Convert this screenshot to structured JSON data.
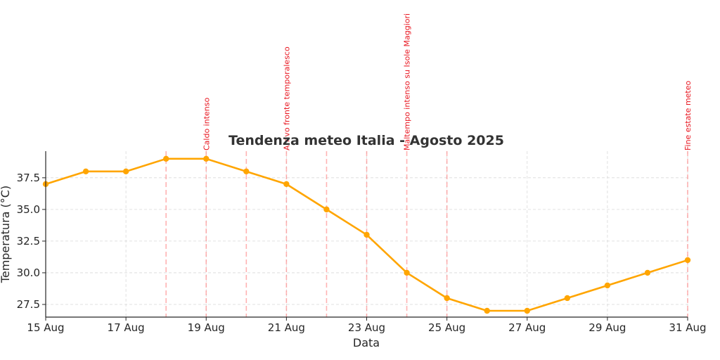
{
  "chart_data": {
    "type": "line",
    "title": "Tendenza meteo Italia - Agosto 2025",
    "xlabel": "Data",
    "ylabel": "Temperatura (°C)",
    "x": [
      "15 Aug",
      "16 Aug",
      "17 Aug",
      "18 Aug",
      "19 Aug",
      "20 Aug",
      "21 Aug",
      "22 Aug",
      "23 Aug",
      "24 Aug",
      "25 Aug",
      "26 Aug",
      "27 Aug",
      "28 Aug",
      "29 Aug",
      "30 Aug",
      "31 Aug"
    ],
    "xticks": [
      "15 Aug",
      "17 Aug",
      "19 Aug",
      "21 Aug",
      "23 Aug",
      "25 Aug",
      "27 Aug",
      "29 Aug",
      "31 Aug"
    ],
    "yticks": [
      "27.5",
      "30.0",
      "32.5",
      "35.0",
      "37.5"
    ],
    "ylim": [
      26.5,
      39.6
    ],
    "series": [
      {
        "values": [
          37,
          38,
          38,
          39,
          39,
          38,
          37,
          35,
          33,
          30,
          28,
          27,
          27,
          28,
          29,
          30,
          31
        ]
      }
    ],
    "event_lines": [
      "18 Aug",
      "19 Aug",
      "20 Aug",
      "21 Aug",
      "22 Aug",
      "23 Aug",
      "24 Aug",
      "25 Aug",
      "31 Aug"
    ],
    "annotations": [
      {
        "x": "19 Aug",
        "text": "Caldo intenso"
      },
      {
        "x": "21 Aug",
        "text": "Arrivo fronte temporalesco"
      },
      {
        "x": "24 Aug",
        "text": "Maltempo intenso su Isole Maggiori"
      },
      {
        "x": "31 Aug",
        "text": "Fine estate meteo"
      }
    ],
    "grid": true,
    "colors": {
      "line": "#ffa500",
      "event_line": "#ff8080",
      "annotation": "#e8141e",
      "grid": "#d9d9d9"
    }
  }
}
